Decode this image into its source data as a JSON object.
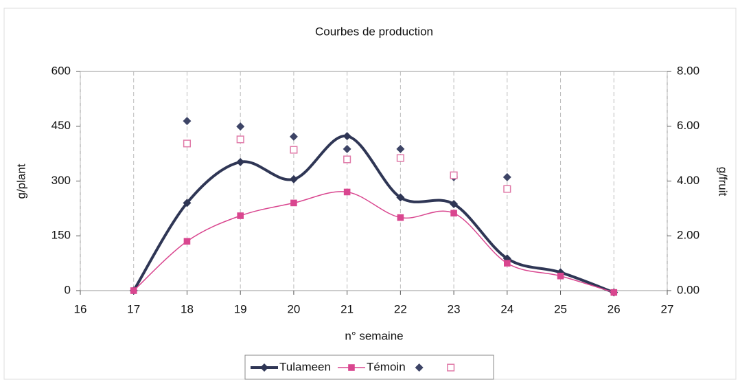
{
  "chart_data": {
    "type": "line",
    "title": "Courbes de production",
    "xlabel": "n° semaine",
    "ylabel": "g/plant",
    "y2label": "g/fruit",
    "xlim": [
      16,
      27
    ],
    "xticks": [
      16,
      17,
      18,
      19,
      20,
      21,
      22,
      23,
      24,
      25,
      26,
      27
    ],
    "ylim": [
      0,
      600
    ],
    "yticks": [
      0,
      150,
      300,
      450,
      600
    ],
    "y2lim": [
      0,
      8
    ],
    "y2ticks": [
      {
        "value": 0,
        "label": "0.00"
      },
      {
        "value": 2,
        "label": "2.00"
      },
      {
        "value": 4,
        "label": "4.00"
      },
      {
        "value": 6,
        "label": "6.00"
      },
      {
        "value": 8,
        "label": "8.00"
      }
    ],
    "legend": "bottom",
    "series": [
      {
        "name": "Tulameen",
        "color": "#2f3655",
        "marker": "diamond",
        "line": true,
        "width": 4,
        "x": [
          17,
          18,
          19,
          20,
          21,
          22,
          23,
          24,
          25,
          26
        ],
        "values": [
          0,
          240,
          352,
          305,
          423,
          255,
          237,
          88,
          50,
          -5
        ]
      },
      {
        "name": "Témoin",
        "color": "#d9468f",
        "marker": "square",
        "line": true,
        "width": 1.5,
        "x": [
          17,
          18,
          19,
          20,
          21,
          22,
          23,
          24,
          25,
          26
        ],
        "values": [
          0,
          135,
          205,
          240,
          270,
          200,
          212,
          75,
          40,
          -5
        ]
      },
      {
        "color": "#3d4466",
        "marker": "diamond",
        "line": false,
        "axis": "y2",
        "x": [
          18,
          19,
          20,
          21,
          22,
          23,
          24
        ],
        "values": [
          6.19,
          5.99,
          5.62,
          5.17,
          5.17,
          4.14,
          4.14
        ]
      },
      {
        "color": "#e07aa8",
        "marker": "open-square",
        "line": false,
        "axis": "y2",
        "x": [
          18,
          19,
          20,
          21,
          22,
          23,
          24
        ],
        "values": [
          5.37,
          5.52,
          5.14,
          4.79,
          4.84,
          4.21,
          3.71
        ]
      }
    ]
  }
}
